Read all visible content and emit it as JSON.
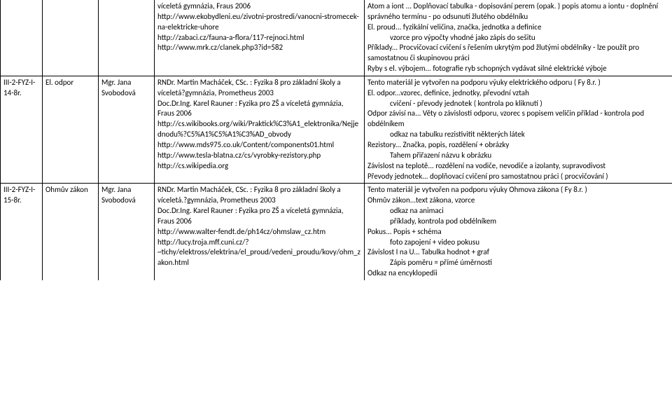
{
  "rows": [
    {
      "c1": "",
      "c2": "",
      "c3": "",
      "c4": "víceletá gymnázia, Fraus 2006\nhttp://www.ekobydleni.eu/zivotni-prostredi/vanocni-stromecek-na-elektricke-uhore\nhttp://zabaci.cz/fauna-a-flora/117-rejnoci.html\nhttp://www.mrk.cz/clanek.php3?id=582",
      "c5_lines": [
        {
          "t": "Atom a iont ... Doplňovací tabulka - dopisování perem (opak. ) popis atomu a iontu - doplnění správného termínu - po odsunutí  žlutého obdélníku"
        },
        {
          "t": "El. proud... fyzikální veličina, značka, jednotka a definice"
        },
        {
          "t": "vzorce pro výpočty  vhodné jako zápis do sešitu",
          "indent": true
        },
        {
          "t": "Příklady... Procvičovací cvičení s řešením ukrytým pod žlutými obdélníky - lze použít pro samostatnou či skupinovou práci"
        },
        {
          "t": "Ryby s el. výbojem... fotografie ryb schopných vydávat silné elektrické výboje"
        }
      ]
    },
    {
      "c1": "III-2-FYZ-I-14-8r.",
      "c2": "El. odpor",
      "c3": "Mgr. Jana Svobodová",
      "c4": "RNDr. Martin Macháček, CSc. : Fyzika 8 pro základní školy a víceletá?gymnázia, Prometheus 2003\nDoc.Dr.Ing. Karel Rauner : Fyzika pro ZŠ a víceletá gymnázia, Fraus 2006\nhttp://cs.wikibooks.org/wiki/Praktick%C3%A1_elektronika/Nejjednodu%?C5%A1%C5%A1%C3%AD_obvody\nhttp://www.mds975.co.uk/Content/components01.html\nhttp://www.tesla-blatna.cz/cs/vyrobky-rezistory.php\nhttp://cs.wikipedia.org",
      "c5_lines": [
        {
          "t": "Tento materiál je vytvořen na podporu výuky  elektrického odporu  ( Fy 8.r. )"
        },
        {
          "t": "El. odpor...vzorec, definice, jednotky, převodní vztah"
        },
        {
          "t": "cvičení - převody jednotek ( kontrola po kliknutí )",
          "indent": true
        },
        {
          "t": "Odpor závisí na... Věty o závislosti odporu, vzorec s popisem veličin  příklad - kontrola pod obdélníkem"
        },
        {
          "t": "odkaz na tabulku rezistivitit některých látek",
          "indent": true
        },
        {
          "t": "Rezistory... Značka, popis, rozdělení + obrázky"
        },
        {
          "t": "Tahem přiřazení názvu k obrázku",
          "indent": true
        },
        {
          "t": "Závislost na teplotě... rozdělení na vodiče, nevodiče a izolanty,  supravodivost"
        },
        {
          "t": "Převody jednotek... doplňovací cvičení pro samostatnou práci ( procvičování )"
        }
      ]
    },
    {
      "c1": "III-2-FYZ-I-15-8r.",
      "c2": "Ohmův zákon",
      "c3": "Mgr. Jana Svobodová",
      "c4": "RNDr. Martin Macháček, CSc. : Fyzika 8 pro základní školy a víceletá.?gymnázia, Prometheus 2003\nDoc.Dr.Ing. Karel Rauner : Fyzika pro ZŠ a víceletá gymnázia, Fraus 2006\nhttp://www.walter-fendt.de/ph14cz/ohmslaw_cz.htm\nhttp://lucy.troja.mff.cuni.cz/?~tichy/elektross/elektrina/el_proud/vedeni_proudu/kovy/ohm_zakon.html",
      "c5_lines": [
        {
          "t": "Tento materiál je vytvořen na podporu výuky Ohmova zákona ( Fy 8.r. )"
        },
        {
          "t": "Ohmův zákon...text zákona, vzorce"
        },
        {
          "t": "odkaz na animaci",
          "indent": true
        },
        {
          "t": "příklady, kontrola pod obdélníkem",
          "indent": true
        },
        {
          "t": "Pokus... Popis + schéma"
        },
        {
          "t": "foto zapojení + video pokusu",
          "indent": true
        },
        {
          "t": "Závislost I na U... Tabulka hodnot + graf"
        },
        {
          "t": "Zápis poměru = přímé úměrnosti",
          "indent": true
        },
        {
          "t": "Odkaz na encyklopedii"
        }
      ]
    }
  ]
}
